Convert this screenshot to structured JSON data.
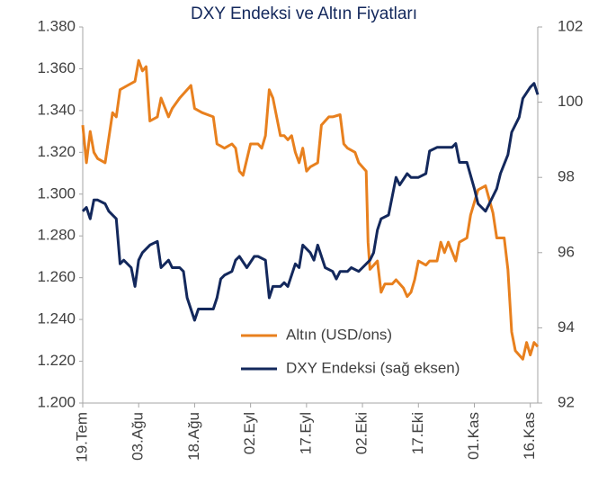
{
  "chart_data": {
    "type": "line",
    "title": "DXY Endeksi ve Altın Fiyatları",
    "xlim": [
      0,
      122
    ],
    "xticks": [
      {
        "value": 0,
        "label": "19.Tem"
      },
      {
        "value": 15,
        "label": "03.Ağu"
      },
      {
        "value": 30,
        "label": "18.Ağu"
      },
      {
        "value": 45,
        "label": "02.Eyl"
      },
      {
        "value": 60,
        "label": "17.Eyl"
      },
      {
        "value": 75,
        "label": "02.Eki"
      },
      {
        "value": 90,
        "label": "17.Eki"
      },
      {
        "value": 105,
        "label": "01.Kas"
      },
      {
        "value": 120,
        "label": "16.Kas"
      }
    ],
    "ylim": [
      1.2,
      1.38
    ],
    "yticks": [
      {
        "value": 1.2,
        "label": "1.200"
      },
      {
        "value": 1.22,
        "label": "1.220"
      },
      {
        "value": 1.24,
        "label": "1.240"
      },
      {
        "value": 1.26,
        "label": "1.260"
      },
      {
        "value": 1.28,
        "label": "1.280"
      },
      {
        "value": 1.3,
        "label": "1.300"
      },
      {
        "value": 1.32,
        "label": "1.320"
      },
      {
        "value": 1.34,
        "label": "1.340"
      },
      {
        "value": 1.36,
        "label": "1.360"
      },
      {
        "value": 1.38,
        "label": "1.380"
      }
    ],
    "y2lim": [
      92,
      102
    ],
    "y2ticks": [
      92,
      94,
      96,
      98,
      100,
      102
    ],
    "grid": false,
    "legend": "lower center",
    "series": [
      {
        "name": "Altın (USD/ons)",
        "color": "#e8801e",
        "axis": "y",
        "x": [
          0,
          1,
          2,
          3,
          4,
          6,
          8,
          9,
          10,
          12,
          14,
          15,
          16,
          17,
          18,
          20,
          21,
          23,
          24,
          26,
          28,
          29,
          30,
          32,
          35,
          36,
          38,
          40,
          41,
          42,
          43,
          45,
          47,
          48,
          49,
          50,
          51,
          53,
          54,
          55,
          56,
          57,
          58,
          59,
          60,
          61,
          63,
          64,
          66,
          67,
          69,
          70,
          71,
          73,
          74,
          75,
          76,
          76.5,
          77,
          79,
          80,
          81,
          83,
          84,
          86,
          87,
          88,
          89,
          90,
          92,
          93,
          95,
          96,
          97,
          98,
          100,
          101,
          103,
          104,
          106,
          108,
          110,
          111,
          113,
          114,
          115,
          116,
          118,
          119,
          120,
          121,
          122
        ],
        "values": [
          1.333,
          1.315,
          1.33,
          1.32,
          1.317,
          1.315,
          1.339,
          1.337,
          1.35,
          1.352,
          1.354,
          1.364,
          1.359,
          1.361,
          1.335,
          1.337,
          1.346,
          1.337,
          1.341,
          1.346,
          1.35,
          1.352,
          1.341,
          1.339,
          1.337,
          1.324,
          1.322,
          1.324,
          1.322,
          1.311,
          1.309,
          1.324,
          1.324,
          1.322,
          1.328,
          1.35,
          1.346,
          1.328,
          1.328,
          1.326,
          1.328,
          1.32,
          1.315,
          1.322,
          1.311,
          1.313,
          1.315,
          1.333,
          1.337,
          1.337,
          1.338,
          1.324,
          1.322,
          1.32,
          1.315,
          1.313,
          1.311,
          1.277,
          1.264,
          1.268,
          1.253,
          1.257,
          1.257,
          1.259,
          1.255,
          1.251,
          1.253,
          1.259,
          1.268,
          1.266,
          1.268,
          1.268,
          1.277,
          1.272,
          1.277,
          1.268,
          1.277,
          1.279,
          1.29,
          1.302,
          1.304,
          1.291,
          1.279,
          1.279,
          1.264,
          1.234,
          1.225,
          1.221,
          1.229,
          1.223,
          1.229,
          1.227
        ]
      },
      {
        "name": "DXY Endeksi (sağ eksen)",
        "color": "#13285c",
        "axis": "y2",
        "x": [
          0,
          1,
          2,
          3,
          4,
          6,
          7,
          9,
          10,
          11,
          13,
          14,
          15,
          16,
          18,
          20,
          21,
          23,
          24,
          26,
          27,
          28,
          30,
          31,
          32,
          35,
          36,
          37,
          38,
          40,
          41,
          42,
          44,
          46,
          47,
          49,
          50,
          51,
          53,
          54,
          55,
          57,
          58,
          59,
          61,
          62,
          63,
          65,
          67,
          68,
          69,
          71,
          72,
          74,
          75,
          77,
          78,
          79,
          80,
          82,
          84,
          85,
          87,
          88,
          90,
          92,
          93,
          95,
          97,
          99,
          100,
          101,
          103,
          105,
          106,
          108,
          109,
          111,
          112,
          114,
          115,
          117,
          118,
          120,
          121,
          122
        ],
        "values": [
          97.1,
          97.2,
          96.9,
          97.4,
          97.4,
          97.3,
          97.1,
          96.9,
          95.7,
          95.8,
          95.6,
          95.1,
          95.8,
          96.0,
          96.2,
          96.3,
          95.6,
          95.8,
          95.6,
          95.6,
          95.5,
          94.8,
          94.2,
          94.5,
          94.5,
          94.5,
          94.8,
          95.3,
          95.4,
          95.5,
          95.8,
          95.9,
          95.6,
          95.9,
          95.9,
          95.8,
          94.8,
          95.1,
          95.1,
          95.2,
          95.1,
          95.7,
          95.6,
          96.2,
          96.0,
          95.8,
          96.2,
          95.6,
          95.5,
          95.3,
          95.5,
          95.5,
          95.6,
          95.5,
          95.6,
          95.8,
          96.0,
          96.6,
          96.9,
          97.0,
          98.0,
          97.8,
          98.1,
          98.0,
          98.0,
          98.1,
          98.7,
          98.8,
          98.8,
          98.8,
          98.9,
          98.4,
          98.4,
          97.7,
          97.3,
          97.1,
          97.3,
          97.7,
          98.1,
          98.6,
          99.2,
          99.6,
          100.1,
          100.4,
          100.5,
          100.2
        ]
      }
    ]
  }
}
